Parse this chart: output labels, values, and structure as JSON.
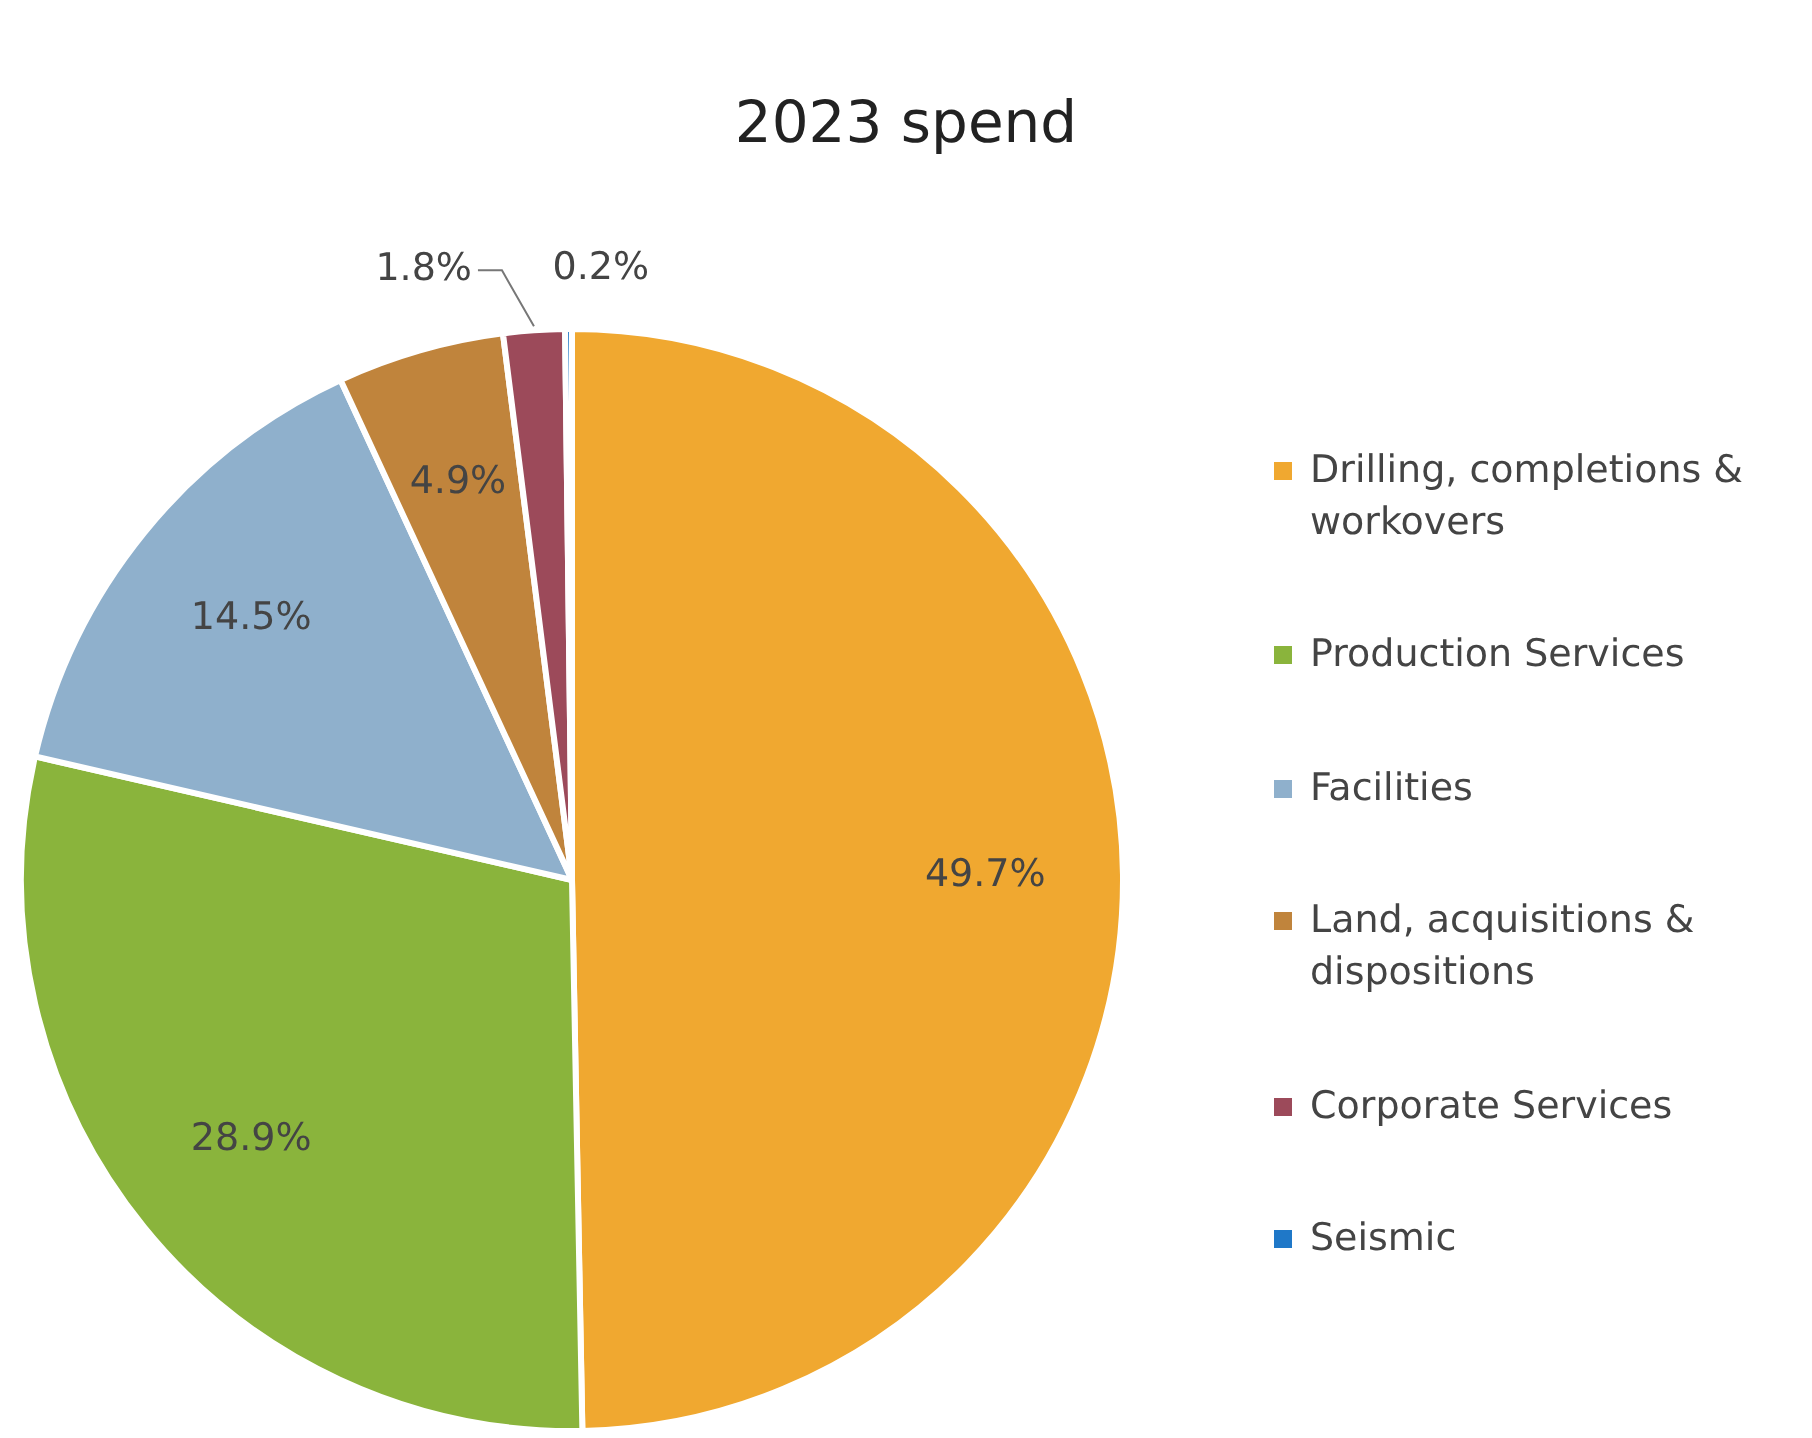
{
  "chart_data": {
    "type": "pie",
    "title": "2023 spend",
    "categories": [
      "Drilling, completions & workovers",
      "Production Services",
      "Facilities",
      "Land, acquisitions & dispositions",
      "Corporate Services",
      "Seismic"
    ],
    "values": [
      49.7,
      28.9,
      14.5,
      4.9,
      1.8,
      0.2
    ],
    "colors": [
      "#f0a830",
      "#8ab43c",
      "#8fb0cc",
      "#c0843c",
      "#9c4a5a",
      "#1f78c8"
    ],
    "value_labels": [
      "49.7%",
      "28.9%",
      "14.5%",
      "4.9%",
      "1.8%",
      "0.2%"
    ],
    "legend": "right"
  }
}
